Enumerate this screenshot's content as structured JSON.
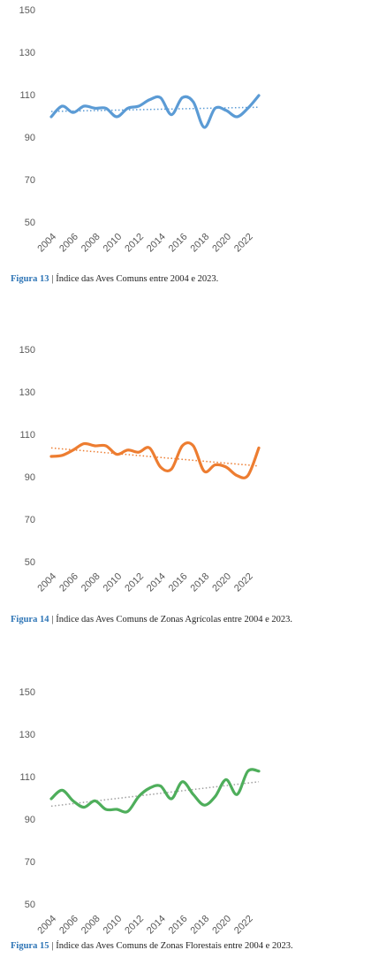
{
  "chart_data": [
    {
      "type": "line",
      "figure_label": "Figura 13",
      "caption": "| Índice das Aves Comuns entre 2004 e 2023.",
      "x": [
        2004,
        2005,
        2006,
        2007,
        2008,
        2009,
        2010,
        2011,
        2012,
        2013,
        2014,
        2015,
        2016,
        2017,
        2018,
        2019,
        2020,
        2021,
        2022,
        2023
      ],
      "xlim": [
        2004,
        2023
      ],
      "xticks": [
        2004,
        2006,
        2008,
        2010,
        2012,
        2014,
        2016,
        2018,
        2020,
        2022
      ],
      "ylim": [
        50,
        150
      ],
      "yticks": [
        50,
        70,
        90,
        110,
        130,
        150
      ],
      "series": [
        {
          "color": "#5b9bd5",
          "values": [
            100,
            105,
            102,
            105,
            104,
            104,
            100,
            104,
            105,
            108,
            109,
            101,
            109,
            107,
            95,
            104,
            103,
            100,
            104,
            110
          ]
        }
      ],
      "trend": {
        "color": "#5b9bd5",
        "x": [
          2004,
          2023
        ],
        "values": [
          102.5,
          104.5
        ]
      }
    },
    {
      "type": "line",
      "figure_label": "Figura 14",
      "caption": "| Índice das Aves Comuns de Zonas Agrícolas entre 2004 e 2023.",
      "x": [
        2004,
        2005,
        2006,
        2007,
        2008,
        2009,
        2010,
        2011,
        2012,
        2013,
        2014,
        2015,
        2016,
        2017,
        2018,
        2019,
        2020,
        2021,
        2022,
        2023
      ],
      "xlim": [
        2004,
        2023
      ],
      "xticks": [
        2004,
        2006,
        2008,
        2010,
        2012,
        2014,
        2016,
        2018,
        2020,
        2022
      ],
      "ylim": [
        50,
        150
      ],
      "yticks": [
        50,
        70,
        90,
        110,
        130,
        150
      ],
      "series": [
        {
          "color": "#ed7d31",
          "values": [
            100,
            100.5,
            103,
            106,
            105,
            105,
            101,
            103,
            102,
            104,
            95,
            94,
            105,
            105,
            93,
            96,
            95,
            91,
            91,
            104
          ]
        }
      ],
      "trend": {
        "color": "#ed7d31",
        "x": [
          2004,
          2023
        ],
        "values": [
          104,
          95.5
        ]
      }
    },
    {
      "type": "line",
      "figure_label": "Figura 15",
      "caption": "| Índice das Aves Comuns de Zonas Florestais entre 2004 e 2023.",
      "x": [
        2004,
        2005,
        2006,
        2007,
        2008,
        2009,
        2010,
        2011,
        2012,
        2013,
        2014,
        2015,
        2016,
        2017,
        2018,
        2019,
        2020,
        2021,
        2022,
        2023
      ],
      "xlim": [
        2004,
        2023
      ],
      "xticks": [
        2004,
        2006,
        2008,
        2010,
        2012,
        2014,
        2016,
        2018,
        2020,
        2022
      ],
      "ylim": [
        50,
        150
      ],
      "yticks": [
        50,
        70,
        90,
        110,
        130,
        150
      ],
      "series": [
        {
          "color": "#4eae5b",
          "values": [
            100,
            104,
            99,
            96,
            99,
            95,
            95,
            94,
            101,
            105,
            106,
            100,
            108,
            102,
            97,
            101,
            109,
            102,
            113,
            113
          ]
        }
      ],
      "trend": {
        "color": "#a0a0a0",
        "x": [
          2004,
          2023
        ],
        "values": [
          96.5,
          108
        ]
      }
    }
  ]
}
